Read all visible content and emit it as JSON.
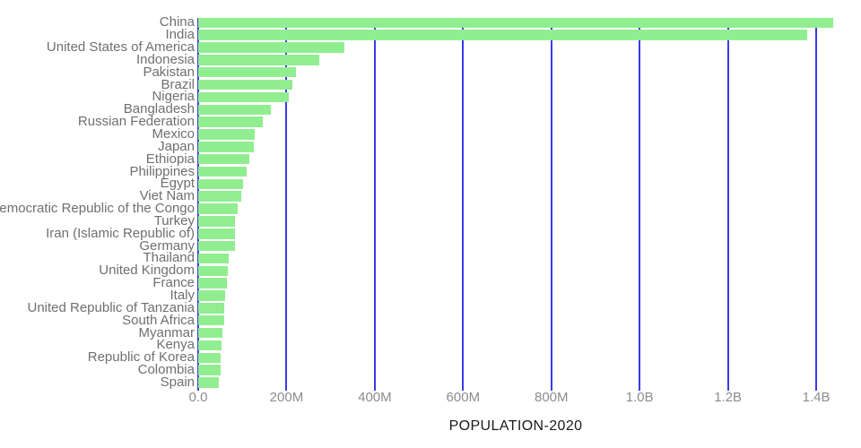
{
  "chart_data": {
    "type": "bar",
    "orientation": "horizontal",
    "title": "",
    "xlabel": "POPULATION-2020",
    "ylabel": "",
    "values_unit": "millions of people",
    "categories": [
      "China",
      "India",
      "United States of America",
      "Indonesia",
      "Pakistan",
      "Brazil",
      "Nigeria",
      "Bangladesh",
      "Russian Federation",
      "Mexico",
      "Japan",
      "Ethiopia",
      "Philippines",
      "Egypt",
      "Viet Nam",
      "Democratic Republic of the Congo",
      "Turkey",
      "Iran (Islamic Republic of)",
      "Germany",
      "Thailand",
      "United Kingdom",
      "France",
      "Italy",
      "United Republic of Tanzania",
      "South Africa",
      "Myanmar",
      "Kenya",
      "Republic of Korea",
      "Colombia",
      "Spain"
    ],
    "values": [
      1439.3,
      1380.0,
      331.0,
      273.5,
      220.9,
      212.6,
      206.1,
      164.7,
      145.9,
      128.9,
      126.5,
      115.0,
      109.6,
      102.3,
      97.3,
      89.6,
      84.3,
      84.0,
      83.8,
      69.8,
      67.9,
      65.3,
      60.5,
      59.7,
      59.3,
      54.4,
      53.8,
      51.3,
      50.9,
      46.8
    ],
    "x_ticks": [
      {
        "value": 0,
        "label": "0.0"
      },
      {
        "value": 200,
        "label": "200M"
      },
      {
        "value": 400,
        "label": "400M"
      },
      {
        "value": 600,
        "label": "600M"
      },
      {
        "value": 800,
        "label": "800M"
      },
      {
        "value": 1000,
        "label": "1.0B"
      },
      {
        "value": 1200,
        "label": "1.2B"
      },
      {
        "value": 1400,
        "label": "1.4B"
      }
    ],
    "xlim": [
      0,
      1500
    ],
    "grid": "vertical",
    "legend": "none",
    "colors": {
      "bar": "#90ee90",
      "gridline": "#3a3ae8",
      "tick_label": "#8c8c8c",
      "category_label": "#6f6f6f",
      "axis_title": "#1a1a1a",
      "background": "#ffffff"
    }
  }
}
